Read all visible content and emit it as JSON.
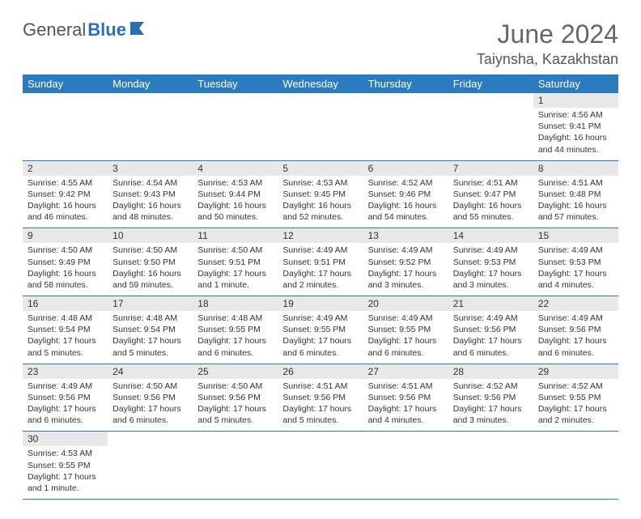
{
  "logo": {
    "text1": "General",
    "text2": "Blue"
  },
  "title": {
    "month": "June 2024",
    "location": "Taiynsha, Kazakhstan"
  },
  "colors": {
    "header_bg": "#2b7bbf",
    "header_text": "#ffffff",
    "daynum_bg": "#e8e8e8",
    "border": "#2b7bbf",
    "title_color": "#666666",
    "text_color": "#333333"
  },
  "dayHeaders": [
    "Sunday",
    "Monday",
    "Tuesday",
    "Wednesday",
    "Thursday",
    "Friday",
    "Saturday"
  ],
  "weeks": [
    {
      "nums": [
        "",
        "",
        "",
        "",
        "",
        "",
        "1"
      ],
      "cells": [
        null,
        null,
        null,
        null,
        null,
        null,
        {
          "sr": "Sunrise: 4:56 AM",
          "ss": "Sunset: 9:41 PM",
          "dl1": "Daylight: 16 hours",
          "dl2": "and 44 minutes."
        }
      ]
    },
    {
      "nums": [
        "2",
        "3",
        "4",
        "5",
        "6",
        "7",
        "8"
      ],
      "cells": [
        {
          "sr": "Sunrise: 4:55 AM",
          "ss": "Sunset: 9:42 PM",
          "dl1": "Daylight: 16 hours",
          "dl2": "and 46 minutes."
        },
        {
          "sr": "Sunrise: 4:54 AM",
          "ss": "Sunset: 9:43 PM",
          "dl1": "Daylight: 16 hours",
          "dl2": "and 48 minutes."
        },
        {
          "sr": "Sunrise: 4:53 AM",
          "ss": "Sunset: 9:44 PM",
          "dl1": "Daylight: 16 hours",
          "dl2": "and 50 minutes."
        },
        {
          "sr": "Sunrise: 4:53 AM",
          "ss": "Sunset: 9:45 PM",
          "dl1": "Daylight: 16 hours",
          "dl2": "and 52 minutes."
        },
        {
          "sr": "Sunrise: 4:52 AM",
          "ss": "Sunset: 9:46 PM",
          "dl1": "Daylight: 16 hours",
          "dl2": "and 54 minutes."
        },
        {
          "sr": "Sunrise: 4:51 AM",
          "ss": "Sunset: 9:47 PM",
          "dl1": "Daylight: 16 hours",
          "dl2": "and 55 minutes."
        },
        {
          "sr": "Sunrise: 4:51 AM",
          "ss": "Sunset: 9:48 PM",
          "dl1": "Daylight: 16 hours",
          "dl2": "and 57 minutes."
        }
      ]
    },
    {
      "nums": [
        "9",
        "10",
        "11",
        "12",
        "13",
        "14",
        "15"
      ],
      "cells": [
        {
          "sr": "Sunrise: 4:50 AM",
          "ss": "Sunset: 9:49 PM",
          "dl1": "Daylight: 16 hours",
          "dl2": "and 58 minutes."
        },
        {
          "sr": "Sunrise: 4:50 AM",
          "ss": "Sunset: 9:50 PM",
          "dl1": "Daylight: 16 hours",
          "dl2": "and 59 minutes."
        },
        {
          "sr": "Sunrise: 4:50 AM",
          "ss": "Sunset: 9:51 PM",
          "dl1": "Daylight: 17 hours",
          "dl2": "and 1 minute."
        },
        {
          "sr": "Sunrise: 4:49 AM",
          "ss": "Sunset: 9:51 PM",
          "dl1": "Daylight: 17 hours",
          "dl2": "and 2 minutes."
        },
        {
          "sr": "Sunrise: 4:49 AM",
          "ss": "Sunset: 9:52 PM",
          "dl1": "Daylight: 17 hours",
          "dl2": "and 3 minutes."
        },
        {
          "sr": "Sunrise: 4:49 AM",
          "ss": "Sunset: 9:53 PM",
          "dl1": "Daylight: 17 hours",
          "dl2": "and 3 minutes."
        },
        {
          "sr": "Sunrise: 4:49 AM",
          "ss": "Sunset: 9:53 PM",
          "dl1": "Daylight: 17 hours",
          "dl2": "and 4 minutes."
        }
      ]
    },
    {
      "nums": [
        "16",
        "17",
        "18",
        "19",
        "20",
        "21",
        "22"
      ],
      "cells": [
        {
          "sr": "Sunrise: 4:48 AM",
          "ss": "Sunset: 9:54 PM",
          "dl1": "Daylight: 17 hours",
          "dl2": "and 5 minutes."
        },
        {
          "sr": "Sunrise: 4:48 AM",
          "ss": "Sunset: 9:54 PM",
          "dl1": "Daylight: 17 hours",
          "dl2": "and 5 minutes."
        },
        {
          "sr": "Sunrise: 4:48 AM",
          "ss": "Sunset: 9:55 PM",
          "dl1": "Daylight: 17 hours",
          "dl2": "and 6 minutes."
        },
        {
          "sr": "Sunrise: 4:49 AM",
          "ss": "Sunset: 9:55 PM",
          "dl1": "Daylight: 17 hours",
          "dl2": "and 6 minutes."
        },
        {
          "sr": "Sunrise: 4:49 AM",
          "ss": "Sunset: 9:55 PM",
          "dl1": "Daylight: 17 hours",
          "dl2": "and 6 minutes."
        },
        {
          "sr": "Sunrise: 4:49 AM",
          "ss": "Sunset: 9:56 PM",
          "dl1": "Daylight: 17 hours",
          "dl2": "and 6 minutes."
        },
        {
          "sr": "Sunrise: 4:49 AM",
          "ss": "Sunset: 9:56 PM",
          "dl1": "Daylight: 17 hours",
          "dl2": "and 6 minutes."
        }
      ]
    },
    {
      "nums": [
        "23",
        "24",
        "25",
        "26",
        "27",
        "28",
        "29"
      ],
      "cells": [
        {
          "sr": "Sunrise: 4:49 AM",
          "ss": "Sunset: 9:56 PM",
          "dl1": "Daylight: 17 hours",
          "dl2": "and 6 minutes."
        },
        {
          "sr": "Sunrise: 4:50 AM",
          "ss": "Sunset: 9:56 PM",
          "dl1": "Daylight: 17 hours",
          "dl2": "and 6 minutes."
        },
        {
          "sr": "Sunrise: 4:50 AM",
          "ss": "Sunset: 9:56 PM",
          "dl1": "Daylight: 17 hours",
          "dl2": "and 5 minutes."
        },
        {
          "sr": "Sunrise: 4:51 AM",
          "ss": "Sunset: 9:56 PM",
          "dl1": "Daylight: 17 hours",
          "dl2": "and 5 minutes."
        },
        {
          "sr": "Sunrise: 4:51 AM",
          "ss": "Sunset: 9:56 PM",
          "dl1": "Daylight: 17 hours",
          "dl2": "and 4 minutes."
        },
        {
          "sr": "Sunrise: 4:52 AM",
          "ss": "Sunset: 9:56 PM",
          "dl1": "Daylight: 17 hours",
          "dl2": "and 3 minutes."
        },
        {
          "sr": "Sunrise: 4:52 AM",
          "ss": "Sunset: 9:55 PM",
          "dl1": "Daylight: 17 hours",
          "dl2": "and 2 minutes."
        }
      ]
    },
    {
      "nums": [
        "30",
        "",
        "",
        "",
        "",
        "",
        ""
      ],
      "cells": [
        {
          "sr": "Sunrise: 4:53 AM",
          "ss": "Sunset: 9:55 PM",
          "dl1": "Daylight: 17 hours",
          "dl2": "and 1 minute."
        },
        null,
        null,
        null,
        null,
        null,
        null
      ]
    }
  ]
}
